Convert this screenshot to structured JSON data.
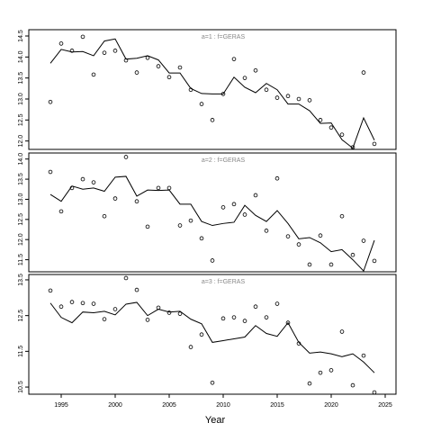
{
  "chart_data": {
    "type": "scatter",
    "xlabel": "Year",
    "xlim": [
      1992,
      2026
    ],
    "xticks": [
      1995,
      2000,
      2005,
      2010,
      2015,
      2020,
      2025
    ],
    "grid": false,
    "x": [
      1994,
      1995,
      1996,
      1997,
      1998,
      1999,
      2000,
      2001,
      2002,
      2003,
      2004,
      2005,
      2006,
      2007,
      2008,
      2009,
      2010,
      2011,
      2012,
      2013,
      2014,
      2015,
      2016,
      2017,
      2018,
      2019,
      2020,
      2021,
      2022,
      2023,
      2024
    ],
    "panels": [
      {
        "label": "a=1  :  f=GERAS",
        "ylim": [
          11.8,
          14.65
        ],
        "yticks": [
          "12.0",
          "12.5",
          "13.0",
          "13.5",
          "14.0",
          "14.5"
        ],
        "series": [
          {
            "kind": "points",
            "values": [
              12.93,
              14.32,
              14.15,
              14.48,
              13.58,
              14.1,
              14.15,
              13.92,
              13.63,
              13.98,
              13.78,
              13.52,
              13.75,
              13.22,
              12.88,
              12.5,
              13.12,
              13.95,
              13.5,
              13.68,
              13.22,
              13.03,
              13.07,
              13.0,
              12.97,
              12.5,
              12.32,
              12.15,
              11.85,
              13.63,
              11.93
            ]
          },
          {
            "kind": "line",
            "values": [
              13.85,
              14.18,
              14.12,
              14.13,
              14.03,
              14.38,
              14.43,
              13.95,
              13.97,
              14.03,
              13.93,
              13.62,
              13.62,
              13.25,
              13.13,
              13.12,
              13.12,
              13.52,
              13.28,
              13.15,
              13.37,
              13.22,
              12.88,
              12.88,
              12.72,
              12.42,
              12.43,
              12.03,
              11.83,
              12.55,
              12.02
            ]
          }
        ]
      },
      {
        "label": "a=2  :  f=GERAS",
        "ylim": [
          11.2,
          14.15
        ],
        "yticks": [
          "11.5",
          "12.0",
          "12.5",
          "13.0",
          "13.5",
          "14.0"
        ],
        "series": [
          {
            "kind": "points",
            "values": [
              13.68,
              12.7,
              13.28,
              13.5,
              13.42,
              12.58,
              13.02,
              14.05,
              12.95,
              12.32,
              13.28,
              13.28,
              12.35,
              12.47,
              12.03,
              11.48,
              12.8,
              12.88,
              12.62,
              13.1,
              12.22,
              13.52,
              12.08,
              11.88,
              11.38,
              12.1,
              11.38,
              12.58,
              11.62,
              11.97,
              11.47
            ]
          },
          {
            "kind": "line",
            "values": [
              13.12,
              12.95,
              13.33,
              13.25,
              13.28,
              13.2,
              13.55,
              13.57,
              13.08,
              13.23,
              13.22,
              13.23,
              12.88,
              12.88,
              12.45,
              12.35,
              12.4,
              12.43,
              12.85,
              12.6,
              12.45,
              12.72,
              12.4,
              12.02,
              12.05,
              11.92,
              11.7,
              11.75,
              11.5,
              11.22,
              11.98
            ]
          }
        ]
      },
      {
        "label": "a=3  :  f=GERAS",
        "ylim": [
          10.3,
          13.65
        ],
        "yticks": [
          "10.5",
          "11.5",
          "12.5",
          "13.5"
        ],
        "series": [
          {
            "kind": "points",
            "values": [
              13.2,
              12.75,
              12.88,
              12.85,
              12.83,
              12.4,
              12.68,
              13.55,
              13.22,
              12.38,
              12.72,
              12.58,
              12.55,
              11.62,
              11.97,
              10.62,
              12.42,
              12.45,
              12.35,
              12.75,
              12.45,
              12.83,
              12.3,
              11.72,
              10.6,
              10.9,
              10.97,
              12.05,
              10.55,
              11.38,
              10.35
            ]
          },
          {
            "kind": "line",
            "values": [
              12.85,
              12.45,
              12.3,
              12.6,
              12.58,
              12.62,
              12.52,
              12.82,
              12.87,
              12.5,
              12.68,
              12.6,
              12.62,
              12.4,
              12.27,
              11.75,
              11.8,
              11.85,
              11.9,
              12.22,
              12.0,
              11.92,
              12.3,
              11.75,
              11.45,
              11.48,
              11.43,
              11.35,
              11.43,
              11.2,
              10.9
            ]
          }
        ]
      }
    ]
  }
}
